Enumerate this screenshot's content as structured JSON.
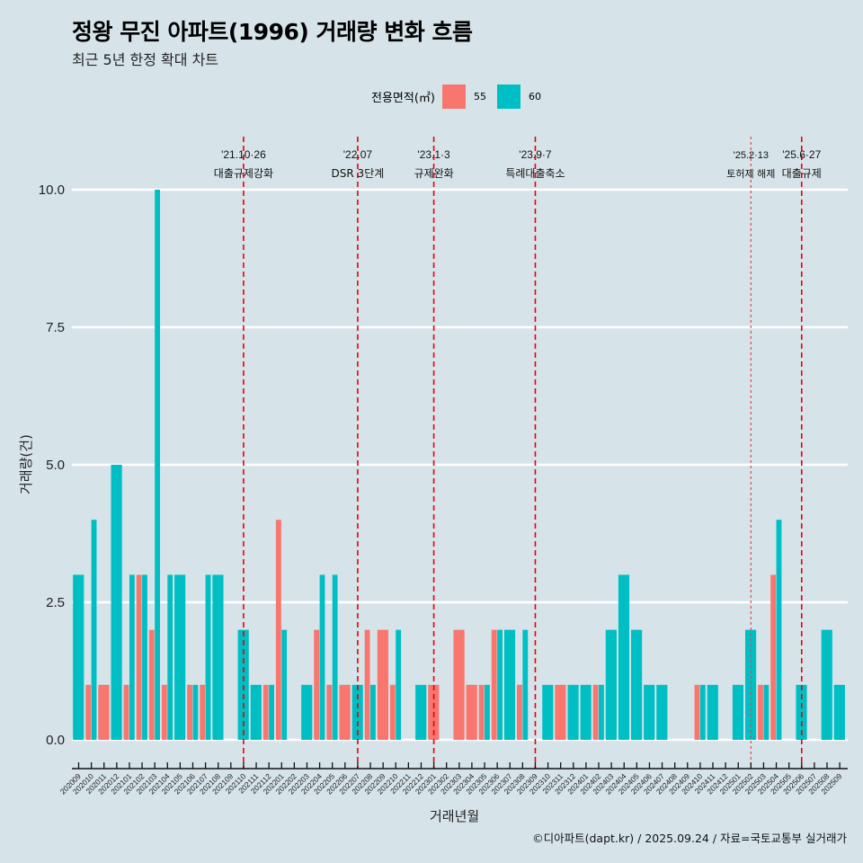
{
  "header": {
    "title": "정왕 무진 아파트(1996) 거래량 변화 흐름",
    "subtitle": "최근 5년 한정 확대 차트"
  },
  "legend": {
    "title": "전용면적(㎡)",
    "items": [
      {
        "label": "55",
        "color": "#f8766d"
      },
      {
        "label": "60",
        "color": "#00bfc4"
      }
    ]
  },
  "footer": "©디아파트(dapt.kr) / 2025.09.24 / 자료=국토교통부 실거래가",
  "chart_data": {
    "type": "bar",
    "title": "정왕 무진 아파트(1996) 거래량 변화 흐름",
    "subtitle": "최근 5년 한정 확대 차트",
    "xlabel": "거래년월",
    "ylabel": "거래량(건)",
    "ylim": [
      0,
      10
    ],
    "yticks": [
      "0.0",
      "2.5",
      "5.0",
      "7.5",
      "10.0"
    ],
    "ytick_values": [
      0,
      2.5,
      5,
      7.5,
      10
    ],
    "grid": true,
    "legend_position": "top",
    "categories": [
      "202009",
      "202010",
      "202011",
      "202012",
      "202101",
      "202102",
      "202103",
      "202104",
      "202105",
      "202106",
      "202107",
      "202108",
      "202109",
      "202110",
      "202111",
      "202112",
      "202201",
      "202202",
      "202203",
      "202204",
      "202205",
      "202206",
      "202207",
      "202208",
      "202209",
      "202210",
      "202211",
      "202212",
      "202301",
      "202302",
      "202303",
      "202304",
      "202305",
      "202306",
      "202307",
      "202308",
      "202309",
      "202310",
      "202311",
      "202312",
      "202401",
      "202402",
      "202403",
      "202404",
      "202405",
      "202406",
      "202407",
      "202408",
      "202409",
      "202410",
      "202411",
      "202412",
      "202501",
      "202502",
      "202503",
      "202504",
      "202505",
      "202506",
      "202507",
      "202508",
      "202509"
    ],
    "series": [
      {
        "name": "55",
        "color": "#f8766d",
        "values": [
          0,
          1,
          1,
          0,
          1,
          3,
          2,
          1,
          0,
          1,
          1,
          0,
          0,
          0,
          0,
          1,
          4,
          0,
          0,
          2,
          1,
          1,
          0,
          2,
          2,
          1,
          0,
          0,
          1,
          0,
          2,
          1,
          1,
          2,
          0,
          1,
          0,
          0,
          1,
          0,
          0,
          1,
          0,
          0,
          0,
          0,
          0,
          0,
          0,
          1,
          0,
          0,
          0,
          0,
          1,
          3,
          0,
          0,
          0,
          0,
          0
        ]
      },
      {
        "name": "60",
        "color": "#00bfc4",
        "values": [
          3,
          4,
          0,
          5,
          3,
          3,
          10,
          3,
          3,
          1,
          3,
          3,
          0,
          2,
          1,
          1,
          2,
          0,
          1,
          3,
          3,
          0,
          1,
          1,
          0,
          2,
          0,
          1,
          0,
          0,
          0,
          0,
          1,
          2,
          2,
          2,
          0,
          1,
          0,
          1,
          1,
          1,
          2,
          3,
          2,
          1,
          1,
          0,
          0,
          1,
          1,
          0,
          1,
          2,
          1,
          4,
          0,
          1,
          0,
          2,
          1
        ]
      }
    ],
    "annotations": [
      {
        "category": "202110",
        "date": "'21.10·26",
        "label": "대출규제강화",
        "style": "dashed"
      },
      {
        "category": "202207",
        "date": "'22.07",
        "label": "DSR 3단계",
        "style": "dashed"
      },
      {
        "category": "202301",
        "date": "'23.1·3",
        "label": "규제완화",
        "style": "dashed"
      },
      {
        "category": "202309",
        "date": "'23.9·7",
        "label": "특례대출축소",
        "style": "dashed"
      },
      {
        "category": "202502",
        "date": "'25.2·13",
        "label": "토허제 해제",
        "style": "dotted"
      },
      {
        "category": "202506",
        "date": "'25.6·27",
        "label": "대출규제",
        "style": "dashed"
      }
    ]
  }
}
